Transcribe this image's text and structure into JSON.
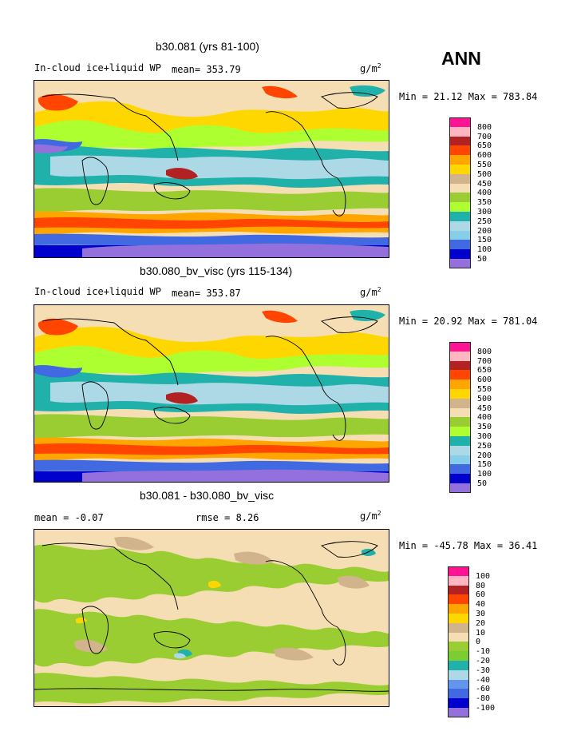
{
  "season": "ANN",
  "panels": [
    {
      "title": "b30.081 (yrs 81-100)",
      "left_label": "In-cloud ice+liquid WP",
      "stat_text": "mean= 353.79",
      "unit_base": "g/m",
      "unit_exp": "2",
      "minmax": "Min =  21.12 Max = 783.84",
      "legend_labels": [
        "800",
        "700",
        "650",
        "600",
        "550",
        "500",
        "450",
        "400",
        "350",
        "300",
        "250",
        "200",
        "150",
        "100",
        "50"
      ],
      "legend_colors": [
        "#ff1493",
        "#ffb6c1",
        "#b22222",
        "#ff4500",
        "#ffa500",
        "#ffd700",
        "#d2b48c",
        "#f5deb3",
        "#9acd32",
        "#adff2f",
        "#20b2aa",
        "#add8e6",
        "#87ceeb",
        "#4169e1",
        "#0000cd",
        "#9370db"
      ]
    },
    {
      "title": "b30.080_bv_visc (yrs 115-134)",
      "left_label": "In-cloud ice+liquid WP",
      "stat_text": "mean= 353.87",
      "unit_base": "g/m",
      "unit_exp": "2",
      "minmax": "Min =  20.92 Max = 781.04",
      "legend_labels": [
        "800",
        "700",
        "650",
        "600",
        "550",
        "500",
        "450",
        "400",
        "350",
        "300",
        "250",
        "200",
        "150",
        "100",
        "50"
      ],
      "legend_colors": [
        "#ff1493",
        "#ffb6c1",
        "#b22222",
        "#ff4500",
        "#ffa500",
        "#ffd700",
        "#d2b48c",
        "#f5deb3",
        "#9acd32",
        "#adff2f",
        "#20b2aa",
        "#add8e6",
        "#87ceeb",
        "#4169e1",
        "#0000cd",
        "#9370db"
      ]
    },
    {
      "title": "b30.081 - b30.080_bv_visc",
      "mean_text": "mean =   -0.07",
      "rmse_text": "rmse =    8.26",
      "unit_base": "g/m",
      "unit_exp": "2",
      "minmax": "Min = -45.78 Max =  36.41",
      "legend_labels": [
        "100",
        "80",
        "60",
        "40",
        "30",
        "20",
        "10",
        "0",
        "-10",
        "-20",
        "-30",
        "-40",
        "-60",
        "-80",
        "-100"
      ],
      "legend_colors": [
        "#ff1493",
        "#ffb6c1",
        "#b22222",
        "#ff4500",
        "#ffa500",
        "#ffd700",
        "#d2b48c",
        "#f5deb3",
        "#9acd32",
        "#7ccd32",
        "#20b2aa",
        "#add8e6",
        "#6495ed",
        "#4169e1",
        "#0000cd",
        "#9370db"
      ]
    }
  ]
}
